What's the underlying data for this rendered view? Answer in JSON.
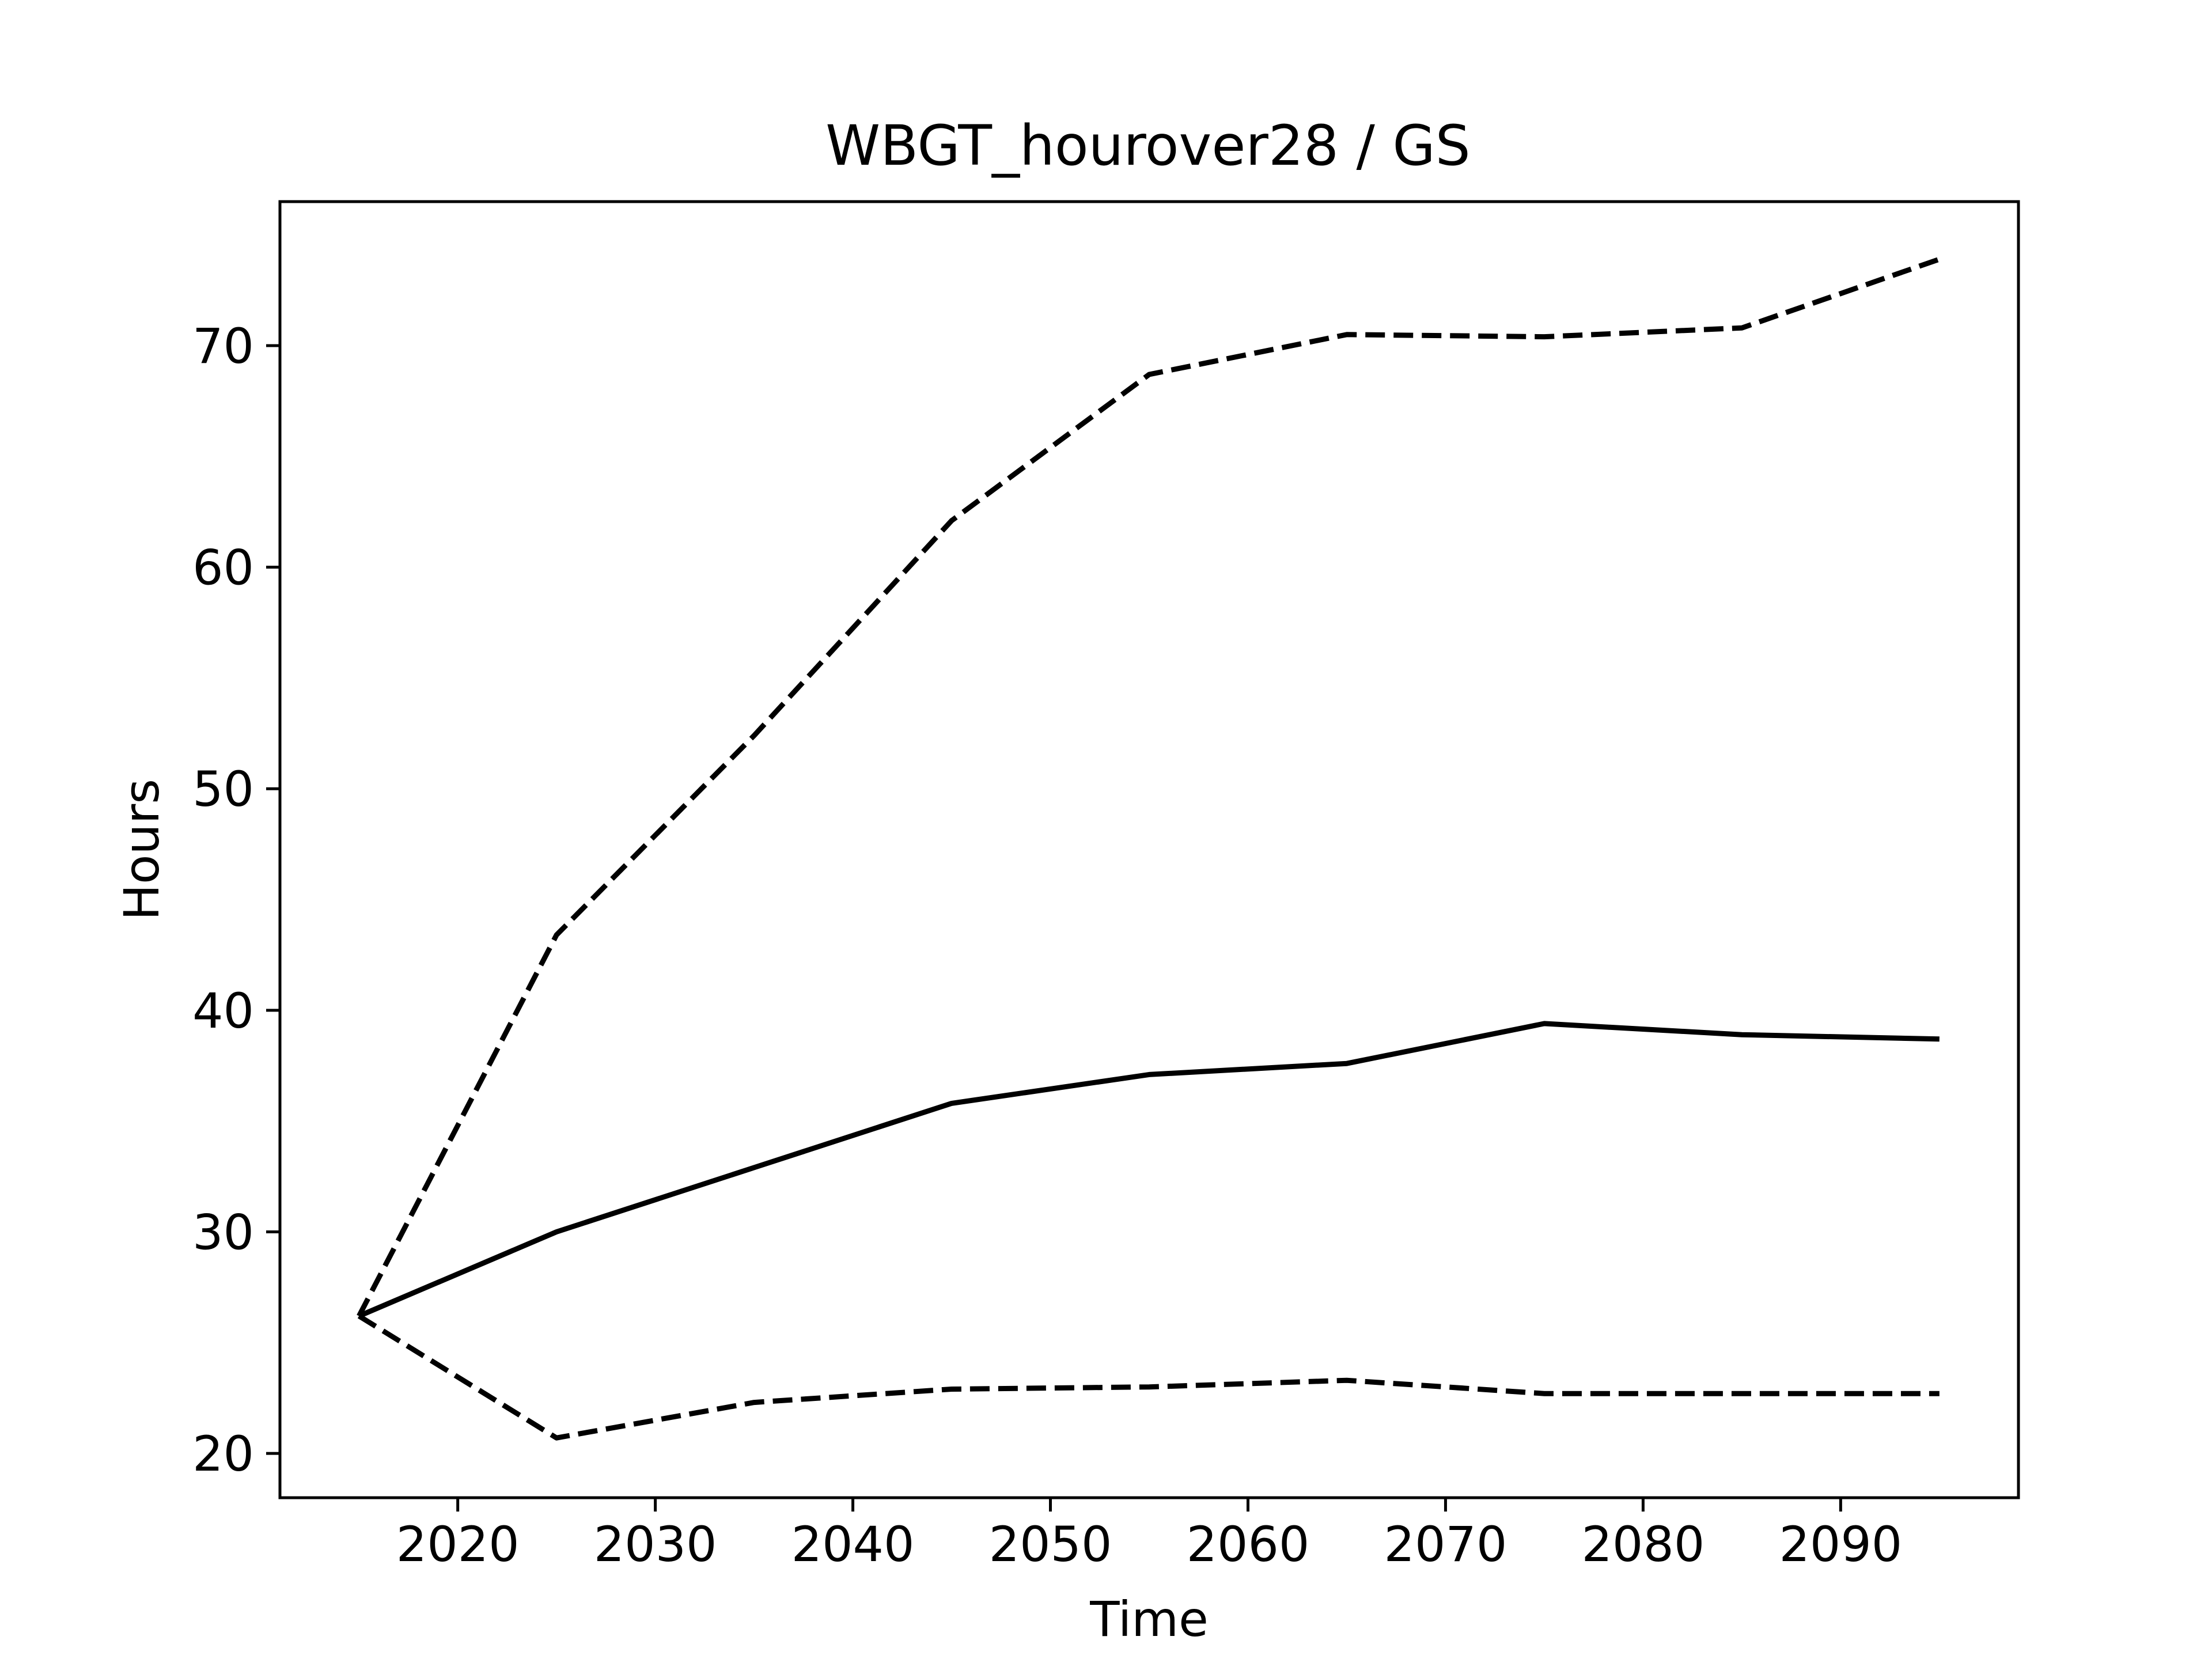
{
  "chart_data": {
    "type": "line",
    "title": "WBGT_hourover28 / GS",
    "xlabel": "Time",
    "ylabel": "Hours",
    "xlim": [
      2011,
      2099
    ],
    "ylim": [
      18,
      76.5
    ],
    "grid": false,
    "legend": "none",
    "x_ticks": [
      2020,
      2030,
      2040,
      2050,
      2060,
      2070,
      2080,
      2090
    ],
    "y_ticks": [
      20,
      30,
      40,
      50,
      60,
      70
    ],
    "x": [
      2015,
      2025,
      2035,
      2045,
      2055,
      2065,
      2075,
      2085,
      2095
    ],
    "series": [
      {
        "line_style": "solid",
        "color": "#000000",
        "values": [
          26.2,
          30.0,
          32.9,
          35.8,
          37.1,
          37.6,
          39.4,
          38.9,
          38.7
        ]
      },
      {
        "line_style": "dashed",
        "color": "#000000",
        "values": [
          26.2,
          43.4,
          52.4,
          62.1,
          68.7,
          70.5,
          70.4,
          70.8,
          73.9
        ]
      },
      {
        "line_style": "dashed",
        "color": "#000000",
        "values": [
          26.2,
          20.7,
          22.3,
          22.9,
          23.0,
          23.3,
          22.7,
          22.7,
          22.7
        ]
      }
    ]
  }
}
